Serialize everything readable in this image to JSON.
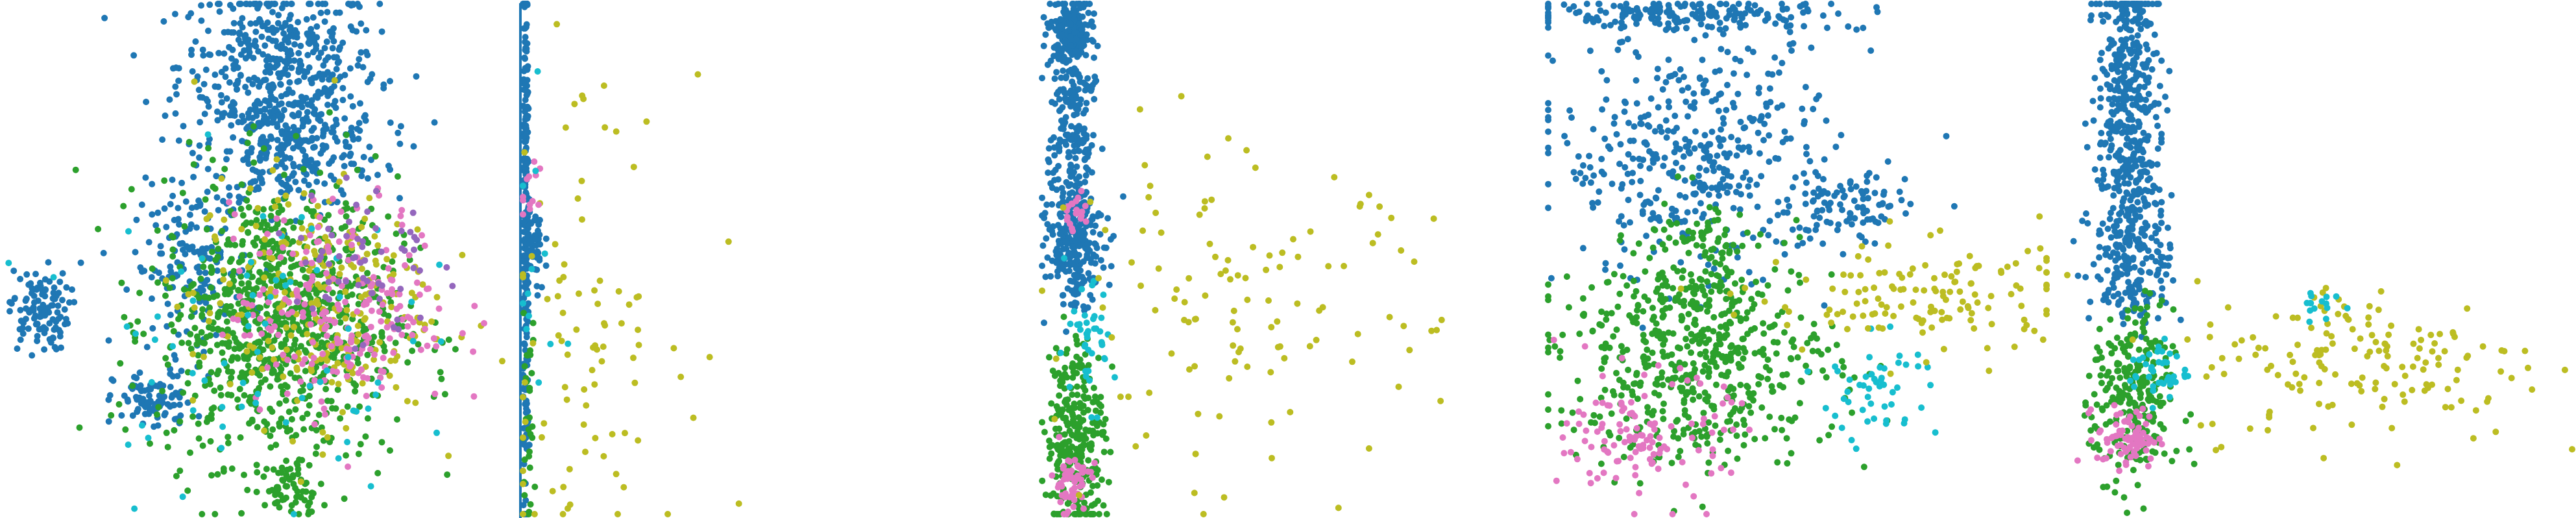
{
  "colors": {
    "blue": "#1f77b4",
    "green": "#2ca02c",
    "pink": "#e377c2",
    "olive": "#bcbd22",
    "cyan": "#17becf",
    "purple": "#9467bd"
  },
  "chart_data": [
    {
      "type": "scatter",
      "title": "",
      "axes_visible": false,
      "grid": false,
      "xlim": [
        0,
        100
      ],
      "ylim": [
        0,
        100
      ],
      "clusters": [
        {
          "color": "blue",
          "cx": 55,
          "cy": 88,
          "sx": 10,
          "sy": 8,
          "n": 420
        },
        {
          "color": "blue",
          "cx": 58,
          "cy": 72,
          "sx": 9,
          "sy": 6,
          "n": 300
        },
        {
          "color": "blue",
          "cx": 7,
          "cy": 40,
          "sx": 3,
          "sy": 4,
          "n": 110
        },
        {
          "color": "blue",
          "cx": 30,
          "cy": 22,
          "sx": 4,
          "sy": 3,
          "n": 90
        },
        {
          "color": "blue",
          "cx": 38,
          "cy": 48,
          "sx": 6,
          "sy": 8,
          "n": 160
        },
        {
          "color": "green",
          "cx": 55,
          "cy": 38,
          "sx": 12,
          "sy": 14,
          "n": 900
        },
        {
          "color": "green",
          "cx": 58,
          "cy": 5,
          "sx": 3,
          "sy": 3,
          "n": 60
        },
        {
          "color": "olive",
          "cx": 62,
          "cy": 42,
          "sx": 12,
          "sy": 12,
          "n": 260
        },
        {
          "color": "pink",
          "cx": 68,
          "cy": 40,
          "sx": 11,
          "sy": 10,
          "n": 220
        },
        {
          "color": "cyan",
          "cx": 48,
          "cy": 35,
          "sx": 16,
          "sy": 16,
          "n": 70
        },
        {
          "color": "purple",
          "cx": 72,
          "cy": 50,
          "sx": 7,
          "sy": 9,
          "n": 60
        }
      ]
    },
    {
      "type": "scatter",
      "title": "",
      "axes_visible": false,
      "grid": false,
      "xlim": [
        0,
        100
      ],
      "ylim": [
        0,
        100
      ],
      "clusters": [
        {
          "color": "blue",
          "cx": 0.6,
          "cy": 55,
          "sx": 0.3,
          "sy": 30,
          "n": 240
        },
        {
          "color": "blue",
          "cx": 2,
          "cy": 52,
          "sx": 1.2,
          "sy": 5,
          "n": 60
        },
        {
          "color": "green",
          "cx": 1,
          "cy": 18,
          "sx": 0.8,
          "sy": 10,
          "n": 30
        },
        {
          "color": "olive",
          "cx": 12,
          "cy": 40,
          "sx": 10,
          "sy": 22,
          "n": 90
        },
        {
          "color": "pink",
          "cx": 1.5,
          "cy": 62,
          "sx": 1,
          "sy": 3,
          "n": 12
        },
        {
          "color": "cyan",
          "cx": 3,
          "cy": 45,
          "sx": 3,
          "sy": 20,
          "n": 12
        }
      ]
    },
    {
      "type": "scatter",
      "title": "",
      "axes_visible": false,
      "grid": false,
      "xlim": [
        0,
        100
      ],
      "ylim": [
        0,
        100
      ],
      "clusters": [
        {
          "color": "blue",
          "cx": 6,
          "cy": 94,
          "sx": 2,
          "sy": 3,
          "n": 160
        },
        {
          "color": "blue",
          "cx": 6,
          "cy": 75,
          "sx": 2.5,
          "sy": 14,
          "n": 260
        },
        {
          "color": "blue",
          "cx": 7,
          "cy": 52,
          "sx": 3,
          "sy": 5,
          "n": 200
        },
        {
          "color": "green",
          "cx": 7,
          "cy": 15,
          "sx": 3,
          "sy": 10,
          "n": 300
        },
        {
          "color": "pink",
          "cx": 6,
          "cy": 6,
          "sx": 2,
          "sy": 3,
          "n": 60
        },
        {
          "color": "pink",
          "cx": 7,
          "cy": 59,
          "sx": 1.5,
          "sy": 2,
          "n": 20
        },
        {
          "color": "cyan",
          "cx": 9,
          "cy": 33,
          "sx": 3,
          "sy": 6,
          "n": 40
        },
        {
          "color": "olive",
          "cx": 40,
          "cy": 40,
          "sx": 20,
          "sy": 15,
          "n": 120
        }
      ]
    },
    {
      "type": "scatter",
      "title": "",
      "axes_visible": false,
      "grid": false,
      "xlim": [
        0,
        100
      ],
      "ylim": [
        0,
        100
      ],
      "clusters": [
        {
          "color": "blue",
          "cx": 28,
          "cy": 98,
          "sx": 18,
          "sy": 1.5,
          "n": 180
        },
        {
          "color": "blue",
          "cx": 30,
          "cy": 70,
          "sx": 14,
          "sy": 12,
          "n": 420
        },
        {
          "color": "blue",
          "cx": 60,
          "cy": 60,
          "sx": 6,
          "sy": 4,
          "n": 90
        },
        {
          "color": "green",
          "cx": 30,
          "cy": 30,
          "sx": 14,
          "sy": 10,
          "n": 520
        },
        {
          "color": "green",
          "cx": 30,
          "cy": 48,
          "sx": 6,
          "sy": 8,
          "n": 120
        },
        {
          "color": "pink",
          "cx": 20,
          "cy": 15,
          "sx": 8,
          "sy": 6,
          "n": 120
        },
        {
          "color": "cyan",
          "cx": 66,
          "cy": 25,
          "sx": 6,
          "sy": 5,
          "n": 50
        },
        {
          "color": "olive",
          "cx": 75,
          "cy": 42,
          "sx": 16,
          "sy": 6,
          "n": 140
        }
      ]
    },
    {
      "type": "scatter",
      "title": "",
      "axes_visible": false,
      "grid": false,
      "xlim": [
        0,
        100
      ],
      "ylim": [
        0,
        100
      ],
      "clusters": [
        {
          "color": "blue",
          "cx": 12,
          "cy": 82,
          "sx": 3,
          "sy": 14,
          "n": 420
        },
        {
          "color": "blue",
          "cx": 13,
          "cy": 52,
          "sx": 4,
          "sy": 8,
          "n": 220
        },
        {
          "color": "green",
          "cx": 13,
          "cy": 22,
          "sx": 4,
          "sy": 9,
          "n": 260
        },
        {
          "color": "pink",
          "cx": 12,
          "cy": 15,
          "sx": 3,
          "sy": 3,
          "n": 80
        },
        {
          "color": "cyan",
          "cx": 18,
          "cy": 28,
          "sx": 3,
          "sy": 3,
          "n": 40
        },
        {
          "color": "olive",
          "cx": 60,
          "cy": 30,
          "sx": 18,
          "sy": 8,
          "n": 160
        },
        {
          "color": "cyan",
          "cx": 50,
          "cy": 42,
          "sx": 2,
          "sy": 2,
          "n": 15
        }
      ]
    }
  ]
}
